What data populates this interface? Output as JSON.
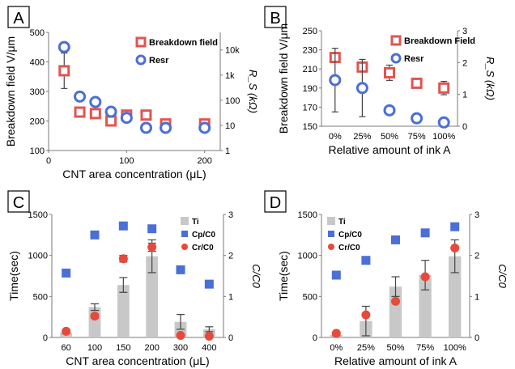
{
  "colors": {
    "breakdown": "#e05550",
    "resr": "#4a6fd6",
    "ti_bar": "#c8c8c8",
    "cp": "#4a6fd6",
    "cr": "#e8493a",
    "axis": "#7a7a7a",
    "error": "#444444"
  },
  "chart_data": [
    {
      "panel": "A",
      "type": "scatter",
      "xlabel": "CNT area concentration (μL)",
      "ylabel": "Breakdown field V/μm",
      "y2label": "R_S (kΩ)",
      "xlim": [
        0,
        220
      ],
      "xticks": [
        0,
        100,
        200
      ],
      "ylim": [
        100,
        500
      ],
      "yticks": [
        100,
        200,
        300,
        400,
        500
      ],
      "y2scale": "log",
      "y2lim": [
        1,
        50000
      ],
      "y2ticks": [
        {
          "v": 1,
          "label": "1"
        },
        {
          "v": 10,
          "label": "10"
        },
        {
          "v": 100,
          "label": "100"
        },
        {
          "v": 1000,
          "label": "1k"
        },
        {
          "v": 10000,
          "label": "10k"
        }
      ],
      "legend": "top-right",
      "series": [
        {
          "name": "Breakdown field",
          "marker": "square",
          "axis": "left",
          "x": [
            20,
            40,
            60,
            80,
            100,
            125,
            150,
            200
          ],
          "y": [
            370,
            230,
            225,
            200,
            220,
            220,
            190,
            190
          ],
          "err": [
            60,
            0,
            0,
            0,
            0,
            0,
            0,
            0
          ]
        },
        {
          "name": "Resr",
          "marker": "circle",
          "axis": "right",
          "x": [
            20,
            40,
            60,
            80,
            100,
            125,
            150,
            200
          ],
          "y": [
            13000,
            140,
            85,
            35,
            20,
            8,
            8,
            8
          ],
          "err": [
            0,
            0,
            0,
            0,
            0,
            0,
            0,
            0
          ]
        }
      ]
    },
    {
      "panel": "B",
      "type": "scatter",
      "xlabel": "Relative amount of ink A",
      "ylabel": "Breakdown field V/μm",
      "y2label": "R_S (kΩ)",
      "categories": [
        "0%",
        "25%",
        "50%",
        "75%",
        "100%"
      ],
      "ylim": [
        150,
        250
      ],
      "yticks": [
        150,
        170,
        190,
        210,
        230,
        250
      ],
      "y2lim": [
        0,
        3
      ],
      "y2ticks": [
        0,
        1,
        2,
        3
      ],
      "legend": "top-right",
      "series": [
        {
          "name": "Breakdown Field",
          "marker": "square",
          "axis": "left",
          "y": [
            222,
            212,
            206,
            195,
            190
          ],
          "err": [
            0,
            0,
            8,
            0,
            7
          ]
        },
        {
          "name": "Resr",
          "marker": "circle",
          "axis": "right",
          "y": [
            1.45,
            1.2,
            0.5,
            0.25,
            0.12
          ],
          "err": [
            1.0,
            0.9,
            0,
            0,
            0
          ]
        }
      ]
    },
    {
      "panel": "C",
      "type": "bar",
      "xlabel": "CNT area concentration (μL)",
      "ylabel": "Time(sec)",
      "y2label": "C/C0",
      "categories": [
        "60",
        "100",
        "150",
        "200",
        "300",
        "400"
      ],
      "ylim": [
        0,
        1500
      ],
      "yticks": [
        0,
        500,
        1000,
        1500
      ],
      "y2lim": [
        0,
        3
      ],
      "y2ticks": [
        0,
        1,
        2,
        3
      ],
      "legend": "top-right",
      "series": [
        {
          "name": "Ti",
          "kind": "bar",
          "axis": "left",
          "values": [
            60,
            370,
            640,
            990,
            190,
            100
          ],
          "err": [
            10,
            40,
            90,
            200,
            90,
            30
          ]
        },
        {
          "name": "Cp/C0",
          "kind": "square",
          "axis": "right",
          "values": [
            1.57,
            2.5,
            2.72,
            2.65,
            1.65,
            1.3
          ],
          "err": [
            0,
            0,
            0.06,
            0,
            0,
            0
          ]
        },
        {
          "name": "Cr/C0",
          "kind": "circle",
          "axis": "right",
          "values": [
            0.15,
            0.52,
            1.92,
            2.2,
            0.05,
            0.03
          ],
          "err": [
            0,
            0.05,
            0.08,
            0.1,
            0,
            0
          ]
        }
      ]
    },
    {
      "panel": "D",
      "type": "bar",
      "xlabel": "Relative amount of ink A",
      "ylabel": "Time(sec)",
      "y2label": "C/C0",
      "categories": [
        "0%",
        "25%",
        "50%",
        "75%",
        "100%"
      ],
      "ylim": [
        0,
        1500
      ],
      "yticks": [
        0,
        500,
        1000,
        1500
      ],
      "y2lim": [
        0,
        3
      ],
      "y2ticks": [
        0,
        1,
        2,
        3
      ],
      "legend": "top-left",
      "series": [
        {
          "name": "Ti",
          "kind": "bar",
          "axis": "left",
          "values": [
            30,
            200,
            620,
            760,
            990
          ],
          "err": [
            10,
            180,
            120,
            180,
            200
          ]
        },
        {
          "name": "Cp/C0",
          "kind": "square",
          "axis": "right",
          "values": [
            1.52,
            1.88,
            2.38,
            2.55,
            2.7
          ],
          "err": [
            0,
            0,
            0,
            0,
            0.08
          ]
        },
        {
          "name": "Cr/C0",
          "kind": "circle",
          "axis": "right",
          "values": [
            0.1,
            0.55,
            0.88,
            1.48,
            2.18
          ],
          "err": [
            0,
            0,
            0,
            0,
            0
          ]
        }
      ]
    }
  ]
}
